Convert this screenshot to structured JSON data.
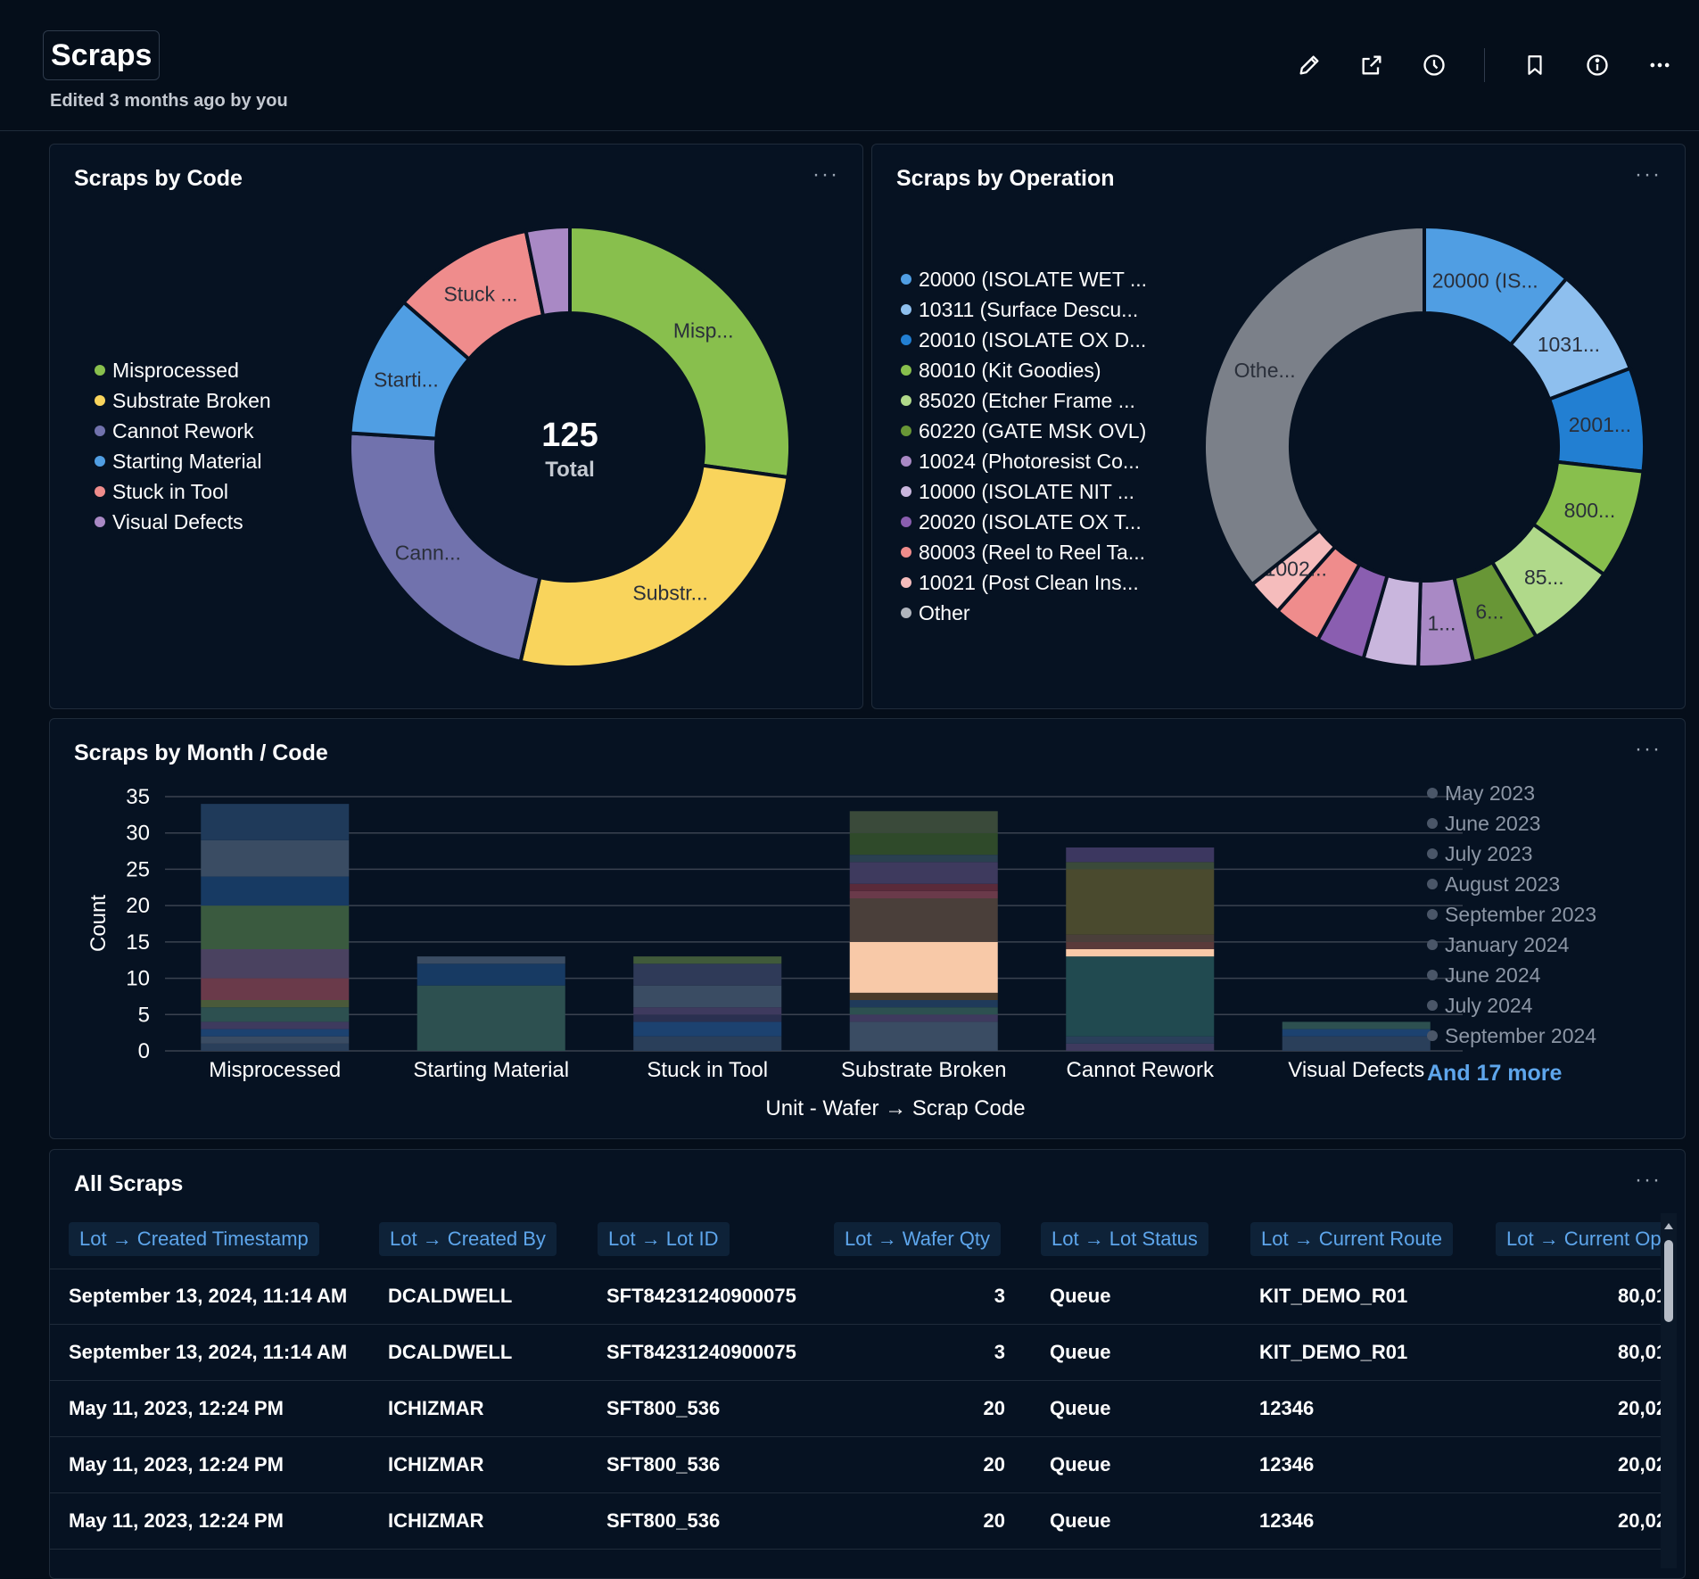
{
  "header": {
    "title": "Scraps",
    "subtitle": "Edited 3 months ago by you",
    "icons": [
      "pencil-icon",
      "external-link-icon",
      "clock-icon",
      "bookmark-icon",
      "info-icon",
      "more-icon"
    ]
  },
  "card_menu": "···",
  "scraps_by_code": {
    "title": "Scraps by Code",
    "total_value": "125",
    "total_label": "Total",
    "legend": [
      {
        "label": "Misprocessed",
        "color": "#88bf4d"
      },
      {
        "label": "Substrate Broken",
        "color": "#f9d45c"
      },
      {
        "label": "Cannot Rework",
        "color": "#7172ad"
      },
      {
        "label": "Starting Material",
        "color": "#509ee3"
      },
      {
        "label": "Stuck in Tool",
        "color": "#ef8c8c"
      },
      {
        "label": "Visual Defects",
        "color": "#a989c5"
      }
    ]
  },
  "scraps_by_operation": {
    "title": "Scraps by Operation",
    "legend": [
      {
        "label": "20000 (ISOLATE WET ...",
        "color": "#509ee3"
      },
      {
        "label": "10311 (Surface Descu...",
        "color": "#8ebfee"
      },
      {
        "label": "20010 (ISOLATE OX D...",
        "color": "#227fd2"
      },
      {
        "label": "80010 (Kit Goodies)",
        "color": "#88bf4d"
      },
      {
        "label": "85020 (Etcher Frame ...",
        "color": "#b0d98a"
      },
      {
        "label": "60220 (GATE MSK OVL)",
        "color": "#689636"
      },
      {
        "label": "10024 (Photoresist Co...",
        "color": "#a989c5"
      },
      {
        "label": "10000 (ISOLATE NIT ...",
        "color": "#c9b6dd"
      },
      {
        "label": "20020 (ISOLATE OX T...",
        "color": "#8a5eb0"
      },
      {
        "label": "80003 (Reel to Reel Ta...",
        "color": "#ef8c8c"
      },
      {
        "label": "10021 (Post Clean Ins...",
        "color": "#f5bcbc"
      },
      {
        "label": "Other",
        "color": "#b0b5bd"
      }
    ],
    "other_color": "#7b8089"
  },
  "scraps_by_month": {
    "title": "Scraps by Month / Code",
    "legend": [
      "May 2023",
      "June 2023",
      "July 2023",
      "August 2023",
      "September 2023",
      "January 2024",
      "June 2024",
      "July 2024",
      "September 2024"
    ],
    "legend_colors": [
      "#2a3f5a",
      "#3a4c63",
      "#1c4270",
      "#3a5a3f",
      "#405a3a",
      "#2f4a2a",
      "#3e3a5e",
      "#4a4260",
      "#3c3760"
    ],
    "more_label": "And 17 more"
  },
  "chart_data": [
    {
      "type": "pie",
      "title": "Scraps by Code",
      "labels": [
        "Misprocessed",
        "Substrate Broken",
        "Cannot Rework",
        "Starting Material",
        "Stuck in Tool",
        "Visual Defects"
      ],
      "values": [
        34,
        33,
        28,
        13,
        13,
        4
      ],
      "slice_labels": [
        "Misp...",
        "Substr...",
        "Cann...",
        "Starti...",
        "Stuck ...",
        ""
      ],
      "center_value": 125,
      "center_label": "Total"
    },
    {
      "type": "pie",
      "title": "Scraps by Operation",
      "labels": [
        "20000 (ISOLATE WET ...",
        "10311 (Surface Descu...",
        "20010 (ISOLATE OX D...",
        "80010 (Kit Goodies)",
        "85020 (Etcher Frame ...",
        "60220 (GATE MSK OVL)",
        "10024 (Photoresist Co...",
        "10000 (ISOLATE NIT ...",
        "20020 (ISOLATE OX T...",
        "80003 (Reel to Reel Ta...",
        "10021 (Post Clean Ins...",
        "Other"
      ],
      "values": [
        12.5,
        9,
        8.5,
        9,
        7.5,
        5.5,
        4.5,
        4.5,
        4,
        4,
        3,
        40
      ],
      "slice_labels": [
        "20000 (IS...",
        "1031...",
        "2001...",
        "800...",
        "85...",
        "6...",
        "1...",
        "",
        "",
        "",
        "1002...",
        "Othe..."
      ]
    },
    {
      "type": "bar",
      "stacked": true,
      "title": "Scraps by Month / Code",
      "categories": [
        "Misprocessed",
        "Starting Material",
        "Stuck in Tool",
        "Substrate Broken",
        "Cannot Rework",
        "Visual Defects"
      ],
      "totals": [
        34,
        13,
        13,
        33,
        28,
        4
      ],
      "xlabel": "Unit - Wafer → Scrap Code",
      "ylabel": "Count",
      "ylim": [
        0,
        35
      ],
      "yticks": [
        0,
        5,
        10,
        15,
        20,
        25,
        30,
        35
      ],
      "segments": [
        [
          [
            1,
            "#2a3f5a"
          ],
          [
            1,
            "#3a4c63"
          ],
          [
            1,
            "#1c4270"
          ],
          [
            1,
            "#3e3a5e"
          ],
          [
            2,
            "#2d5050"
          ],
          [
            1,
            "#4a5a3a"
          ],
          [
            3,
            "#6a3a4a"
          ],
          [
            4,
            "#4a4260"
          ],
          [
            6,
            "#3a5a3f"
          ],
          [
            4,
            "#173a63"
          ],
          [
            5,
            "#3a4c63"
          ],
          [
            5,
            "#1f3a5a"
          ]
        ],
        [
          [
            9,
            "#2d5050"
          ],
          [
            3,
            "#173a63"
          ],
          [
            1,
            "#3a4c63"
          ]
        ],
        [
          [
            2,
            "#2a3f5a"
          ],
          [
            2,
            "#1c4270"
          ],
          [
            1,
            "#2a3050"
          ],
          [
            1,
            "#3e3a5e"
          ],
          [
            3,
            "#3a4c63"
          ],
          [
            3,
            "#2f3a58"
          ],
          [
            1,
            "#405a3a"
          ]
        ],
        [
          [
            4,
            "#3a4c63"
          ],
          [
            1,
            "#3e3a5e"
          ],
          [
            1,
            "#2d5050"
          ],
          [
            1,
            "#1f3a5a"
          ],
          [
            1,
            "#4a3a2a"
          ],
          [
            7,
            "#f8c9a8"
          ],
          [
            6,
            "#4a3f3a"
          ],
          [
            1,
            "#6a3a4a"
          ],
          [
            1,
            "#5a2a3a"
          ],
          [
            3,
            "#3e3a5e"
          ],
          [
            1,
            "#2a4050"
          ],
          [
            3,
            "#2f4a2a"
          ],
          [
            3,
            "#3a4a3a"
          ]
        ],
        [
          [
            1,
            "#3e3a5e"
          ],
          [
            1,
            "#2a3f5a"
          ],
          [
            11,
            "#214a50"
          ],
          [
            1,
            "#f8c9a8"
          ],
          [
            1,
            "#5a3a3a"
          ],
          [
            1,
            "#4a3f3a"
          ],
          [
            9,
            "#4a4a2e"
          ],
          [
            1,
            "#3a4a3a"
          ],
          [
            2,
            "#3c3760"
          ]
        ],
        [
          [
            2,
            "#2a3f5a"
          ],
          [
            1,
            "#1c4270"
          ],
          [
            1,
            "#2d5050"
          ]
        ]
      ]
    }
  ],
  "table": {
    "title": "All Scraps",
    "columns": [
      "Lot → Created Timestamp",
      "Lot → Created By",
      "Lot → Lot ID",
      "Lot → Wafer Qty",
      "Lot → Lot Status",
      "Lot → Current Route",
      "Lot → Current Op"
    ],
    "rows": [
      [
        "September 13, 2024, 11:14 AM",
        "DCALDWELL",
        "SFT84231240900075",
        "3",
        "Queue",
        "KIT_DEMO_R01",
        "80,01"
      ],
      [
        "September 13, 2024, 11:14 AM",
        "DCALDWELL",
        "SFT84231240900075",
        "3",
        "Queue",
        "KIT_DEMO_R01",
        "80,01"
      ],
      [
        "May 11, 2023, 12:24 PM",
        "ICHIZMAR",
        "SFT800_536",
        "20",
        "Queue",
        "12346",
        "20,02"
      ],
      [
        "May 11, 2023, 12:24 PM",
        "ICHIZMAR",
        "SFT800_536",
        "20",
        "Queue",
        "12346",
        "20,02"
      ],
      [
        "May 11, 2023, 12:24 PM",
        "ICHIZMAR",
        "SFT800_536",
        "20",
        "Queue",
        "12346",
        "20,02"
      ]
    ]
  }
}
